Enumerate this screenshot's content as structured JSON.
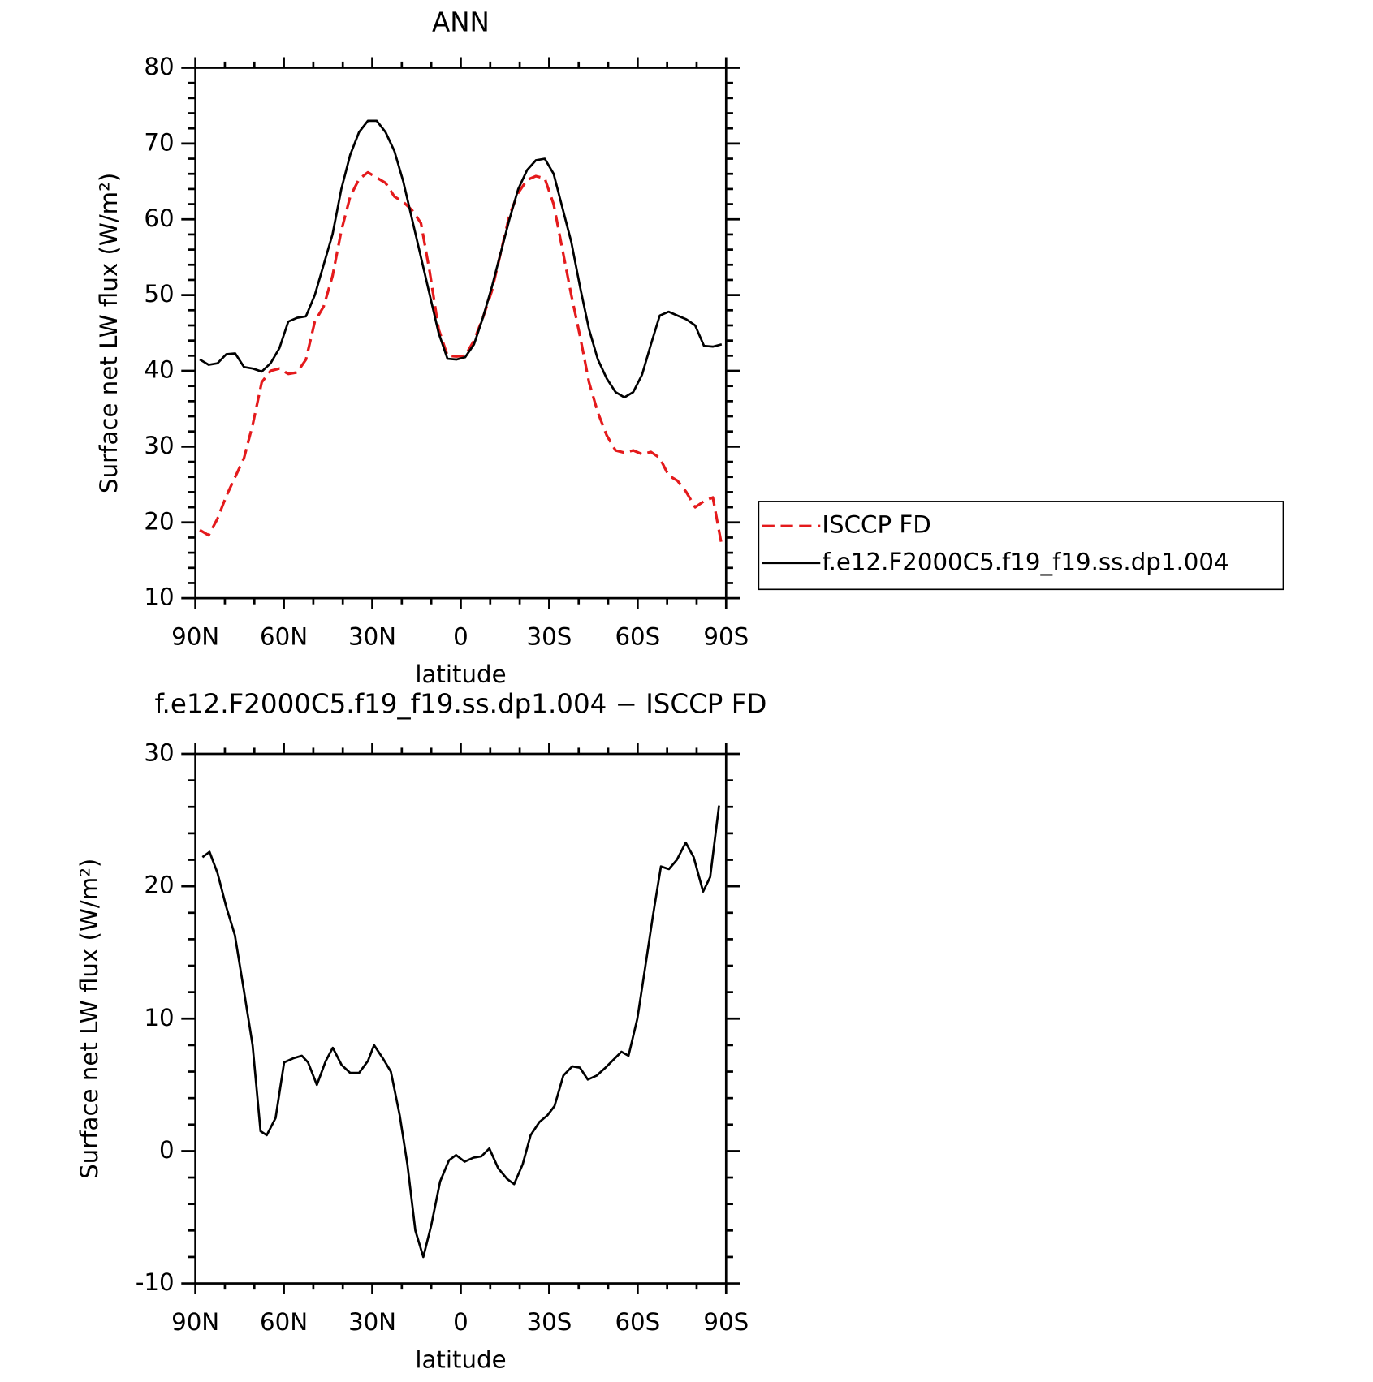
{
  "chart_data": [
    {
      "type": "line",
      "title": "ANN",
      "xlabel": "latitude",
      "ylabel": "Surface net LW flux (W/m²)",
      "x": [
        88.5,
        85.5,
        82.5,
        79.5,
        76.5,
        73.5,
        70.5,
        67.5,
        64.5,
        61.5,
        58.5,
        55.5,
        52.5,
        49.5,
        46.5,
        43.5,
        40.5,
        37.5,
        34.5,
        31.5,
        28.5,
        25.5,
        22.5,
        19.5,
        16.5,
        13.5,
        10.5,
        7.5,
        4.5,
        1.5,
        -1.5,
        -4.5,
        -7.5,
        -10.5,
        -13.5,
        -16.5,
        -19.5,
        -22.5,
        -25.5,
        -28.5,
        -31.5,
        -34.5,
        -37.5,
        -40.5,
        -43.5,
        -46.5,
        -49.5,
        -52.5,
        -55.5,
        -58.5,
        -61.5,
        -64.5,
        -67.5,
        -70.5,
        -73.5,
        -76.5,
        -79.5,
        -82.5,
        -85.5,
        -88.5
      ],
      "series": [
        {
          "name": "ISCCP FD",
          "color": "#e41a1c",
          "dashed": true,
          "values": [
            19,
            18.3,
            20.5,
            23.5,
            26,
            28.5,
            33,
            38.5,
            40,
            40.3,
            39.6,
            39.8,
            41.5,
            46.5,
            48.5,
            52.5,
            58.5,
            63,
            65.3,
            66.2,
            65.5,
            64.8,
            63,
            62.3,
            61.2,
            59.5,
            53,
            45.5,
            42,
            41.9,
            42,
            44,
            47,
            50.5,
            55.5,
            60.5,
            63.5,
            65.2,
            65.7,
            65.4,
            62,
            56,
            50,
            44.5,
            38.5,
            34.5,
            31.5,
            29.5,
            29.2,
            29.5,
            29,
            29.3,
            28.5,
            26.2,
            25.5,
            24,
            22,
            22.8,
            23.3,
            17
          ]
        },
        {
          "name": "f.e12.F2000C5.f19_f19.ss.dp1.004",
          "color": "#000000",
          "dashed": false,
          "values": [
            41.5,
            40.8,
            41,
            42.2,
            42.3,
            40.5,
            40.3,
            39.9,
            41,
            43,
            46.5,
            47,
            47.2,
            50,
            54,
            58,
            64,
            68.5,
            71.5,
            73,
            73,
            71.5,
            69,
            65,
            60,
            55,
            50,
            45,
            41.6,
            41.5,
            41.8,
            43.5,
            47,
            51,
            55.5,
            60,
            64,
            66.5,
            67.8,
            68,
            66,
            61.5,
            57,
            51,
            45.5,
            41.5,
            39,
            37.2,
            36.5,
            37.2,
            39.5,
            43.5,
            47.3,
            47.8,
            47.3,
            46.8,
            46,
            43.3,
            43.2,
            43.5
          ]
        }
      ],
      "xlim": [
        90,
        -90
      ],
      "xticks": [
        {
          "value": 90,
          "label": "90N"
        },
        {
          "value": 60,
          "label": "60N"
        },
        {
          "value": 30,
          "label": "30N"
        },
        0,
        {
          "value": -30,
          "label": "30S"
        },
        {
          "value": -60,
          "label": "60S"
        },
        {
          "value": -90,
          "label": "90S"
        }
      ],
      "xminorticks": [
        80,
        70,
        50,
        40,
        20,
        10,
        -10,
        -20,
        -40,
        -50,
        -70,
        -80
      ],
      "ylim": [
        10,
        80
      ],
      "yticks": [
        10,
        20,
        30,
        40,
        50,
        60,
        70,
        80
      ],
      "yminorticks": [
        12,
        14,
        16,
        18,
        22,
        24,
        26,
        28,
        32,
        34,
        36,
        38,
        42,
        44,
        46,
        48,
        52,
        54,
        56,
        58,
        62,
        64,
        66,
        68,
        72,
        74,
        76,
        78
      ],
      "legend": "outside-right"
    },
    {
      "type": "line",
      "title": "f.e12.F2000C5.f19_f19.ss.dp1.004 − ISCCP FD",
      "xlabel": "latitude",
      "ylabel": "Surface net LW flux (W/m²)",
      "x": [
        87.6,
        85.2,
        82.5,
        79.6,
        76.6,
        73.6,
        70.6,
        67.9,
        65.8,
        62.8,
        59.9,
        56.9,
        53.9,
        51.8,
        48.8,
        45.8,
        43.4,
        40.4,
        37.5,
        34.5,
        31.5,
        29.4,
        26.4,
        23.7,
        20.7,
        18.1,
        15.4,
        12.7,
        10.0,
        7.0,
        4.0,
        1.6,
        -1.3,
        -4.3,
        -7.0,
        -9.7,
        -12.7,
        -15.7,
        -18.1,
        -21.0,
        -23.7,
        -26.7,
        -29.4,
        -31.8,
        -34.8,
        -37.8,
        -40.4,
        -43.1,
        -46.1,
        -49.1,
        -51.8,
        -54.5,
        -56.9,
        -59.9,
        -62.5,
        -65.2,
        -67.9,
        -70.6,
        -73.3,
        -76.3,
        -79.0,
        -82.2,
        -84.6,
        -87.6
      ],
      "values": [
        22.2,
        22.6,
        21,
        18.5,
        16.3,
        12.2,
        8,
        1.5,
        1.2,
        2.5,
        6.7,
        7,
        7.2,
        6.7,
        5,
        6.8,
        7.8,
        6.5,
        5.9,
        5.9,
        6.8,
        8,
        7,
        6,
        2.7,
        -1,
        -6,
        -8,
        -5.6,
        -2.3,
        -0.7,
        -0.3,
        -0.8,
        -0.5,
        -0.4,
        0.2,
        -1.3,
        -2.1,
        -2.5,
        -1,
        1.2,
        2.2,
        2.7,
        3.4,
        5.7,
        6.4,
        6.3,
        5.4,
        5.7,
        6.3,
        6.9,
        7.5,
        7.2,
        10,
        13.8,
        17.8,
        21.5,
        21.3,
        22,
        23.3,
        22.2,
        19.6,
        20.7,
        26.1
      ],
      "color": "#000000",
      "xlim": [
        90,
        -90
      ],
      "xticks": [
        {
          "value": 90,
          "label": "90N"
        },
        {
          "value": 60,
          "label": "60N"
        },
        {
          "value": 30,
          "label": "30N"
        },
        0,
        {
          "value": -30,
          "label": "30S"
        },
        {
          "value": -60,
          "label": "60S"
        },
        {
          "value": -90,
          "label": "90S"
        }
      ],
      "xminorticks": [
        80,
        70,
        50,
        40,
        20,
        10,
        -10,
        -20,
        -40,
        -50,
        -70,
        -80
      ],
      "ylim": [
        -10,
        30
      ],
      "yticks": [
        -10,
        0,
        10,
        20,
        30
      ],
      "yminorticks": [
        -8,
        -6,
        -4,
        -2,
        2,
        4,
        6,
        8,
        12,
        14,
        16,
        18,
        22,
        24,
        26,
        28
      ]
    }
  ]
}
